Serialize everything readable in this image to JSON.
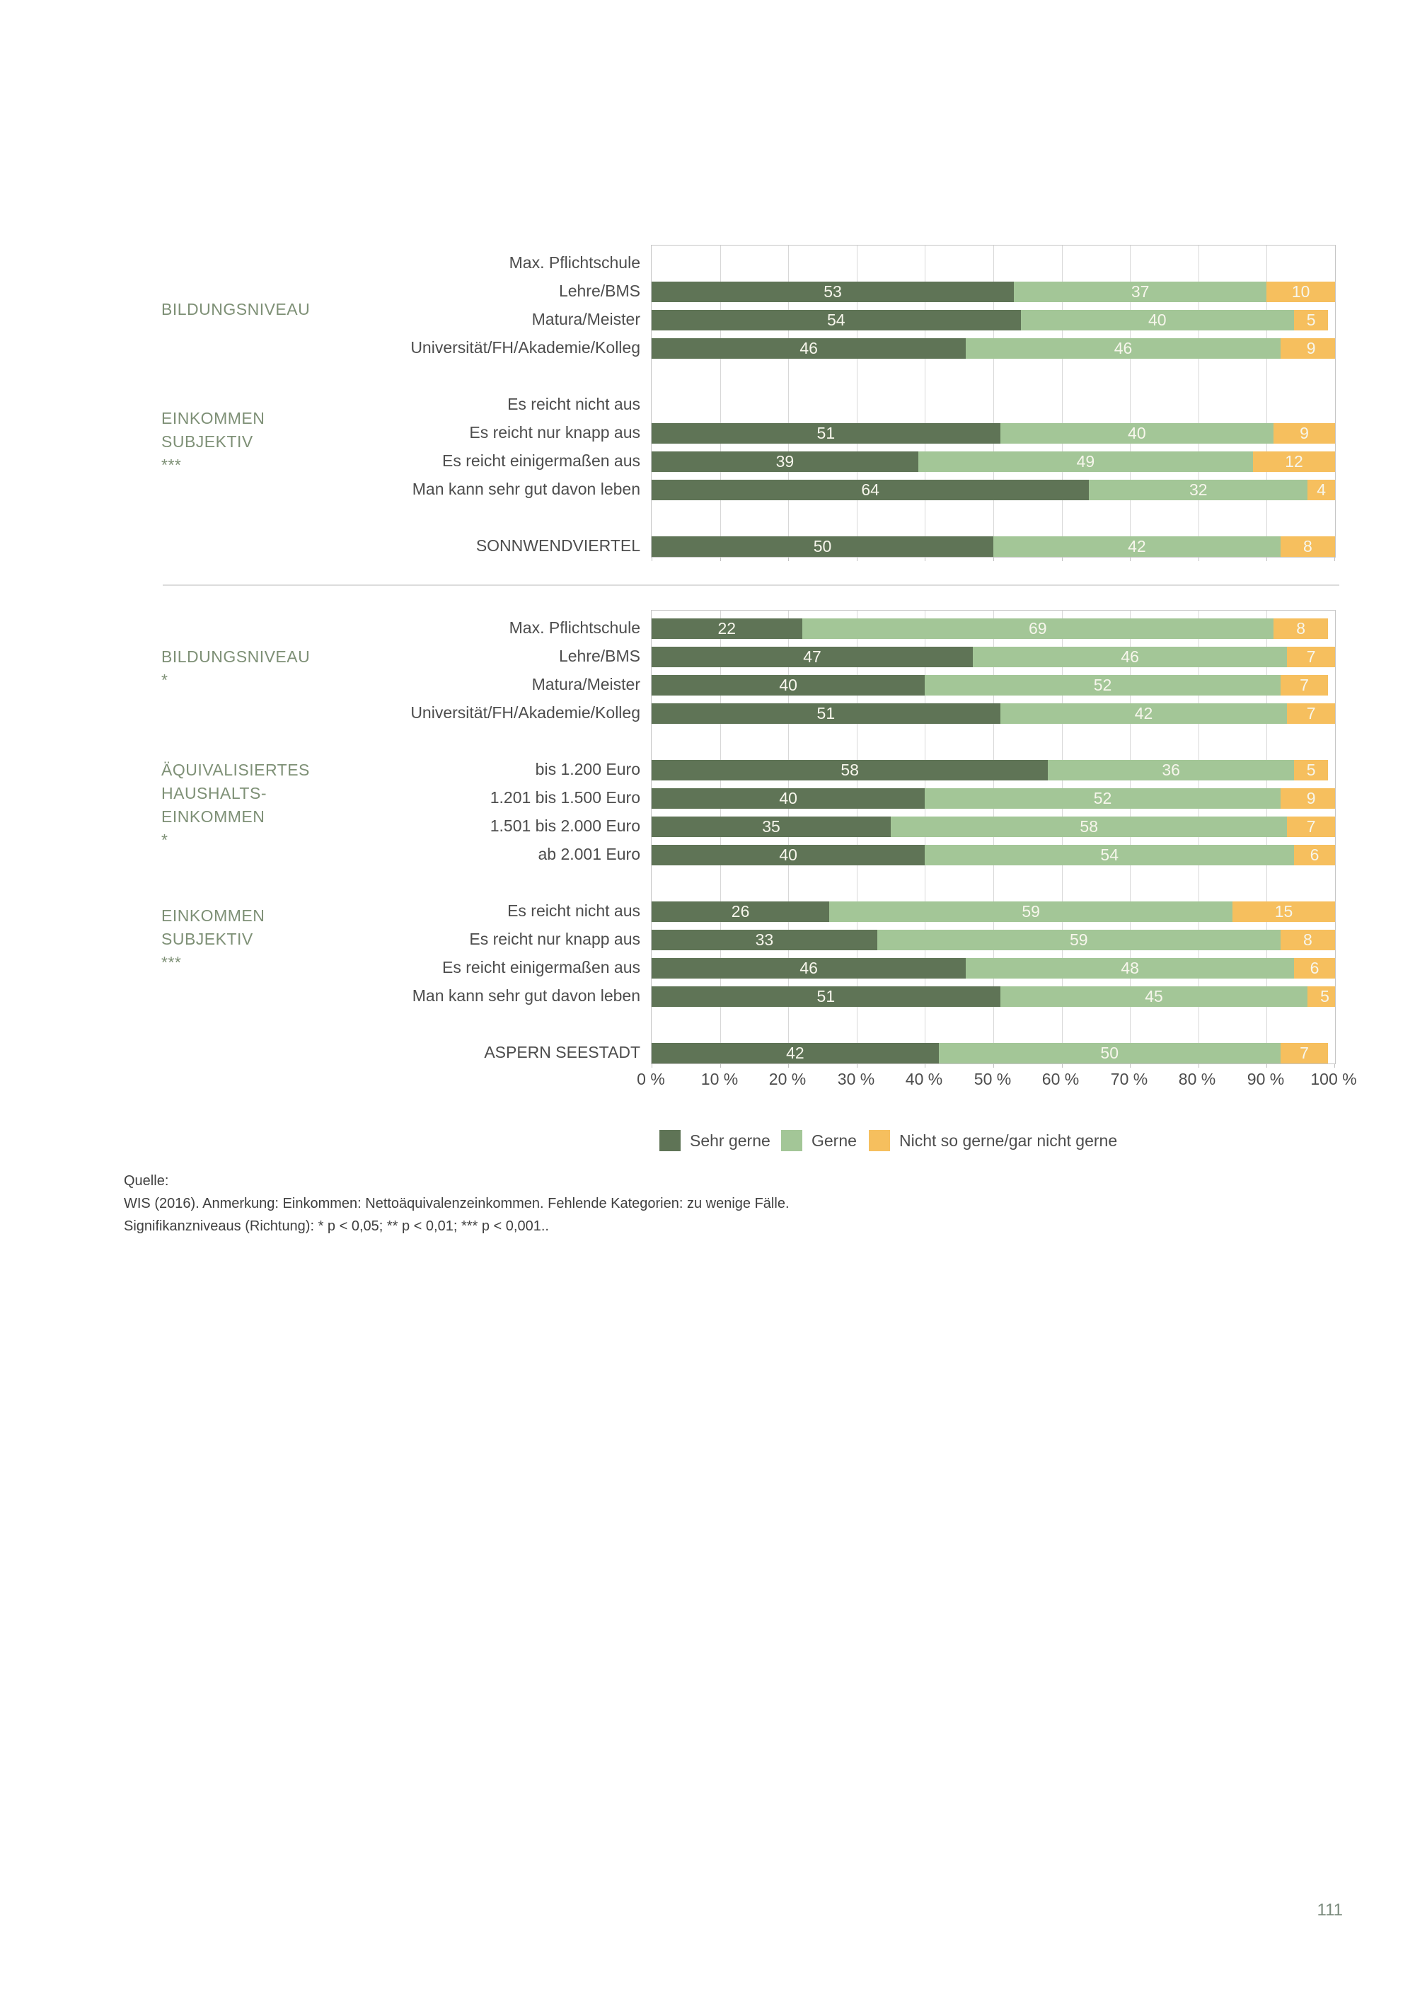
{
  "page": {
    "number": "111"
  },
  "colors": {
    "sehr_gerne": "#5f7456",
    "gerne": "#a3c697",
    "nicht_so_gerne": "#f6bf5e",
    "grid": "#d8d8d8",
    "border": "#c6c6c6"
  },
  "legend": {
    "items": [
      {
        "label": "Sehr gerne",
        "color_key": "sehr_gerne"
      },
      {
        "label": "Gerne",
        "color_key": "gerne"
      },
      {
        "label": "Nicht so gerne/gar nicht gerne",
        "color_key": "nicht_so_gerne"
      }
    ]
  },
  "axis": {
    "ticks": [
      "0 %",
      "10 %",
      "20 %",
      "30 %",
      "40 %",
      "50 %",
      "60 %",
      "70 %",
      "80 %",
      "90 %",
      "100 %"
    ]
  },
  "source_note": {
    "line1": "Quelle:",
    "line2": "WIS (2016). Anmerkung: Einkommen: Nettoäquivalenzeinkommen. Fehlende Kategorien: zu wenige Fälle.",
    "line3": "Signifikanzniveaus (Richtung): * p < 0,05; ** p < 0,01; *** p < 0,001.."
  },
  "chart_data": {
    "type": "bar",
    "subtype": "horizontal_stacked",
    "unit": "percent",
    "xlim": [
      0,
      100
    ],
    "grid": true,
    "legend_position": "bottom",
    "series_names": [
      "Sehr gerne",
      "Gerne",
      "Nicht so gerne/gar nicht gerne"
    ],
    "panels": [
      {
        "name": "Sonnwendviertel",
        "group_labels": [
          {
            "lines": [
              "BILDUNGSNIVEAU"
            ]
          },
          {
            "lines": [
              "EINKOMMEN",
              "SUBJEKTIV",
              "***"
            ]
          }
        ],
        "rows": [
          {
            "slot": 0,
            "label": "Max. Pflichtschule",
            "values": []
          },
          {
            "slot": 1,
            "label": "Lehre/BMS",
            "values": [
              53,
              37,
              10
            ]
          },
          {
            "slot": 2,
            "label": "Matura/Meister",
            "values": [
              54,
              40,
              5
            ]
          },
          {
            "slot": 3,
            "label": "Universität/FH/Akademie/Kolleg",
            "values": [
              46,
              46,
              9
            ]
          },
          {
            "slot": 5,
            "label": "Es reicht nicht aus",
            "values": []
          },
          {
            "slot": 6,
            "label": "Es reicht nur knapp aus",
            "values": [
              51,
              40,
              9
            ]
          },
          {
            "slot": 7,
            "label": "Es reicht einigermaßen aus",
            "values": [
              39,
              49,
              12
            ]
          },
          {
            "slot": 8,
            "label": "Man kann sehr gut davon leben",
            "values": [
              64,
              32,
              4
            ]
          },
          {
            "slot": 10,
            "label": "SONNWENDVIERTEL",
            "values": [
              50,
              42,
              8
            ]
          }
        ]
      },
      {
        "name": "Aspern Seestadt",
        "group_labels": [
          {
            "lines": [
              "BILDUNGSNIVEAU",
              "*"
            ]
          },
          {
            "lines": [
              "ÄQUIVALISIERTES",
              "HAUSHALTS-",
              "EINKOMMEN",
              "*"
            ]
          },
          {
            "lines": [
              "EINKOMMEN",
              "SUBJEKTIV",
              "***"
            ]
          }
        ],
        "rows": [
          {
            "slot": 0,
            "label": "Max. Pflichtschule",
            "values": [
              22,
              69,
              8
            ]
          },
          {
            "slot": 1,
            "label": "Lehre/BMS",
            "values": [
              47,
              46,
              7
            ]
          },
          {
            "slot": 2,
            "label": "Matura/Meister",
            "values": [
              40,
              52,
              7
            ]
          },
          {
            "slot": 3,
            "label": "Universität/FH/Akademie/Kolleg",
            "values": [
              51,
              42,
              7
            ]
          },
          {
            "slot": 5,
            "label": "bis 1.200 Euro",
            "values": [
              58,
              36,
              5
            ]
          },
          {
            "slot": 6,
            "label": "1.201 bis 1.500 Euro",
            "values": [
              40,
              52,
              9
            ]
          },
          {
            "slot": 7,
            "label": "1.501 bis 2.000 Euro",
            "values": [
              35,
              58,
              7
            ]
          },
          {
            "slot": 8,
            "label": "ab 2.001 Euro",
            "values": [
              40,
              54,
              6
            ]
          },
          {
            "slot": 10,
            "label": "Es reicht nicht aus",
            "values": [
              26,
              59,
              15
            ]
          },
          {
            "slot": 11,
            "label": "Es reicht nur knapp aus",
            "values": [
              33,
              59,
              8
            ]
          },
          {
            "slot": 12,
            "label": "Es reicht einigermaßen aus",
            "values": [
              46,
              48,
              6
            ]
          },
          {
            "slot": 13,
            "label": "Man kann sehr gut davon leben",
            "values": [
              51,
              45,
              5
            ]
          },
          {
            "slot": 15,
            "label": "ASPERN SEESTADT",
            "values": [
              42,
              50,
              7
            ]
          }
        ]
      }
    ]
  }
}
